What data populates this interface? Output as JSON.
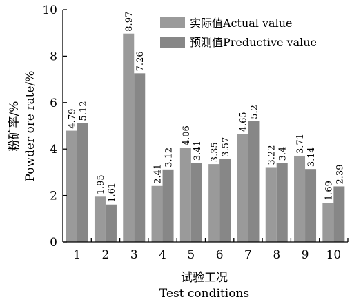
{
  "chart_data": {
    "type": "bar",
    "categories": [
      "1",
      "2",
      "3",
      "4",
      "5",
      "6",
      "7",
      "8",
      "9",
      "10"
    ],
    "series": [
      {
        "name": "实际值Actual value",
        "values": [
          4.79,
          1.95,
          8.97,
          2.41,
          4.06,
          3.35,
          4.65,
          3.22,
          3.71,
          1.69
        ],
        "labels": [
          "4.79",
          "1.95",
          "8.97",
          "2.41",
          "4.06",
          "3.35",
          "4.65",
          "3.22",
          "3.71",
          "1.69"
        ],
        "color": "#9a9a9a"
      },
      {
        "name": "预测值Preductive value",
        "values": [
          5.12,
          1.61,
          7.26,
          3.12,
          3.41,
          3.57,
          5.2,
          3.4,
          3.14,
          2.39
        ],
        "labels": [
          "5.12",
          "1.61",
          "7.26",
          "3.12",
          "3.41",
          "3.57",
          "5.2",
          "3.4",
          "3.14",
          "2.39"
        ],
        "color": "#878787"
      }
    ],
    "ylim": [
      0,
      10
    ],
    "yticks": [
      "0",
      "2",
      "4",
      "6",
      "8",
      "10"
    ],
    "ylabel_cn": "粉矿率/%",
    "ylabel_en": "Powder ore rate/%",
    "xlabel_cn": "试验工况",
    "xlabel_en": "Test conditions",
    "legend_position": "top-right",
    "grid": false
  }
}
